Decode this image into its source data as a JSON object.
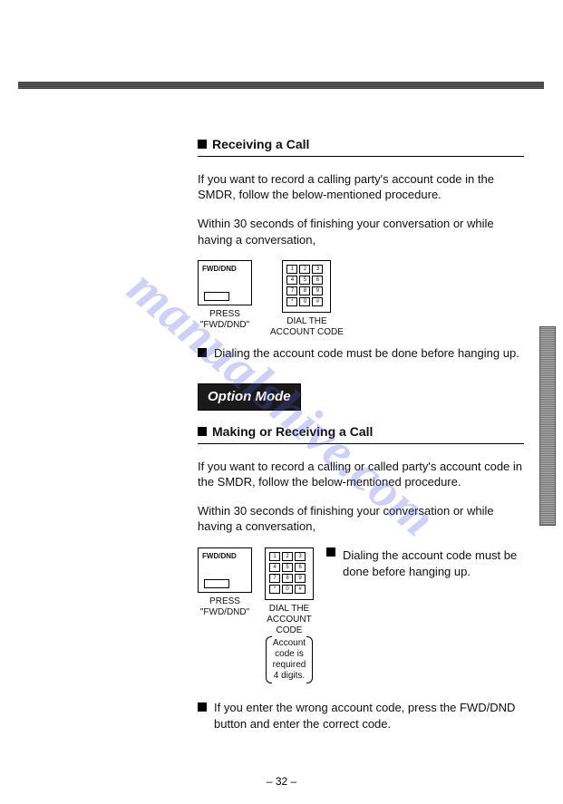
{
  "watermark": "manualshive.com",
  "page_number": "– 32 –",
  "section1": {
    "title": "Receiving a Call",
    "intro": "If you want to record a calling party's account code in the SMDR, follow the below-mentioned procedure.",
    "timing": "Within 30 seconds of finishing your conversation or while having a conversation,",
    "fig1_label_box": "FWD/DND",
    "fig1_caption_line1": "PRESS",
    "fig1_caption_line2": "\"FWD/DND\"",
    "fig2_caption_line1": "DIAL THE",
    "fig2_caption_line2": "ACCOUNT CODE",
    "bullet": "Dialing the account code must be done before hanging up."
  },
  "option_mode_label": "Option Mode",
  "section2": {
    "title": "Making or Receiving a Call",
    "intro": "If you want to record a calling or called party's account code in the SMDR, follow the below-mentioned procedure.",
    "timing": "Within 30 seconds of finishing your conversation or while having a conversation,",
    "fig1_label_box": "FWD/DND",
    "fig1_caption_line1": "PRESS",
    "fig1_caption_line2": "\"FWD/DND\"",
    "fig2_caption_line1": "DIAL THE",
    "fig2_caption_line2": "ACCOUNT",
    "fig2_caption_line3": "CODE",
    "fig2_note_line1": "Account",
    "fig2_note_line2": "code is",
    "fig2_note_line3": "required",
    "fig2_note_line4": "4 digits.",
    "side_bullet": "Dialing the account code must be done before hanging up.",
    "bottom_bullet": "If you enter the wrong account code, press the FWD/DND button and enter the correct code."
  },
  "keypad_keys": [
    "1",
    "2",
    "3",
    "4",
    "5",
    "6",
    "7",
    "8",
    "9",
    "*",
    "0",
    "#"
  ]
}
